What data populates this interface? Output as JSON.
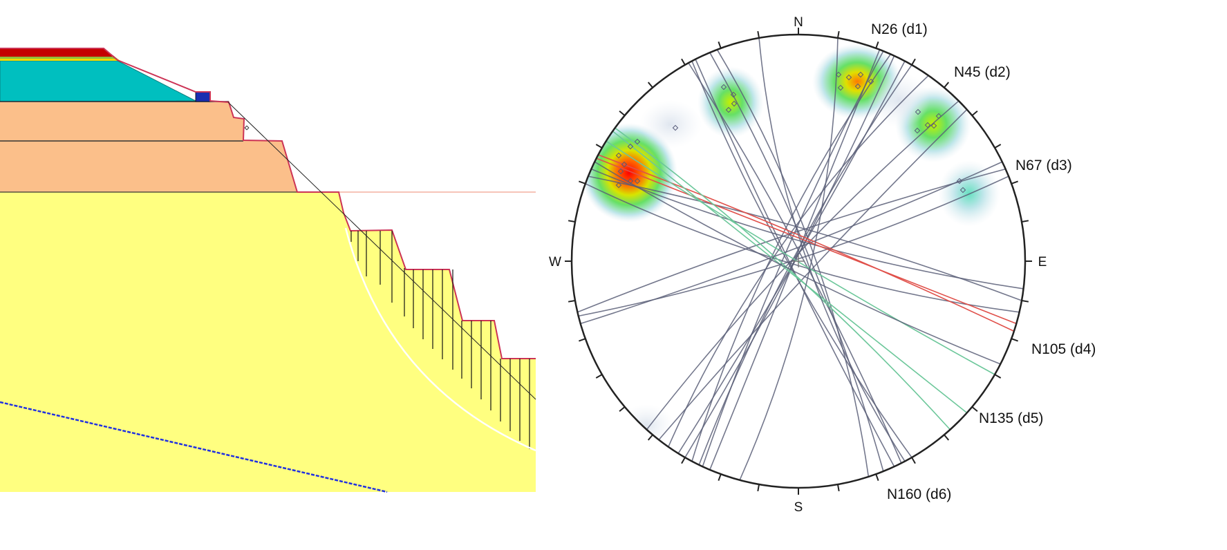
{
  "stereonet": {
    "cardinals": {
      "north": "N",
      "south": "S",
      "east": "E",
      "west": "W"
    },
    "joint_sets": [
      {
        "id": "d1",
        "label": "N26 (d1)",
        "azimuth": 26
      },
      {
        "id": "d2",
        "label": "N45 (d2)",
        "azimuth": 45
      },
      {
        "id": "d3",
        "label": "N67 (d3)",
        "azimuth": 67
      },
      {
        "id": "d4",
        "label": "N105 (d4)",
        "azimuth": 105
      },
      {
        "id": "d5",
        "label": "N135 (d5)",
        "azimuth": 135
      },
      {
        "id": "d6",
        "label": "N160 (d6)",
        "azimuth": 160
      }
    ],
    "colors": {
      "circle": "#222222",
      "great_circle": "#5a5f78",
      "highlight_red": "#e0504a",
      "highlight_green": "#6cc79a"
    }
  },
  "cross_section": {
    "colors": {
      "bedrock": "#ffff80",
      "upper_layer": "#fbbf8a",
      "fill_layer": "#00bfbf",
      "top_layer": "#c40000",
      "water_table": "#2030e0",
      "slope_outline": "#cc3355",
      "support_block": "#1a2eb0"
    }
  }
}
